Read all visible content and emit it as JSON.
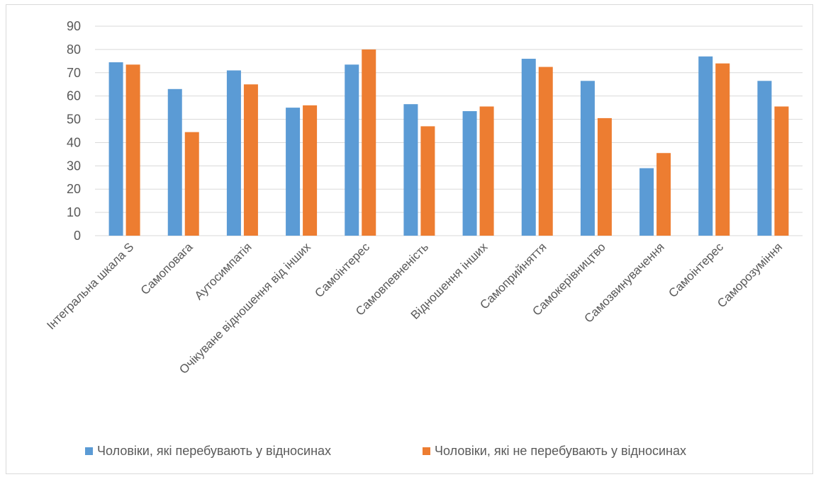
{
  "chart_data": {
    "type": "bar",
    "title": "",
    "xlabel": "",
    "ylabel": "",
    "ylim": [
      0,
      90
    ],
    "yticks": [
      0,
      10,
      20,
      30,
      40,
      50,
      60,
      70,
      80,
      90
    ],
    "grid": true,
    "legend_position": "bottom",
    "categories": [
      "Інтегральна шкала S",
      "Самоповага",
      "Аутосимпатія",
      "Очікуване відношення від інших",
      "Самоінтерес",
      "Самовпевненість",
      "Відношення інших",
      "Самоприйняття",
      "Самокерівництво",
      "Самозвинувачення",
      "Самоінтерес",
      "Саморозуміння"
    ],
    "series": [
      {
        "name": "Чоловіки, які перебувають у відносинах",
        "color": "#5b9bd5",
        "values": [
          74.5,
          63,
          71,
          55,
          73.5,
          56.5,
          53.5,
          76,
          66.5,
          29,
          77,
          66.5
        ]
      },
      {
        "name": "Чоловіки, які не перебувають у відносинах",
        "color": "#ed7d31",
        "values": [
          73.5,
          44.5,
          65,
          56,
          80,
          47,
          55.5,
          72.5,
          50.5,
          35.5,
          74,
          55.5
        ]
      }
    ]
  }
}
